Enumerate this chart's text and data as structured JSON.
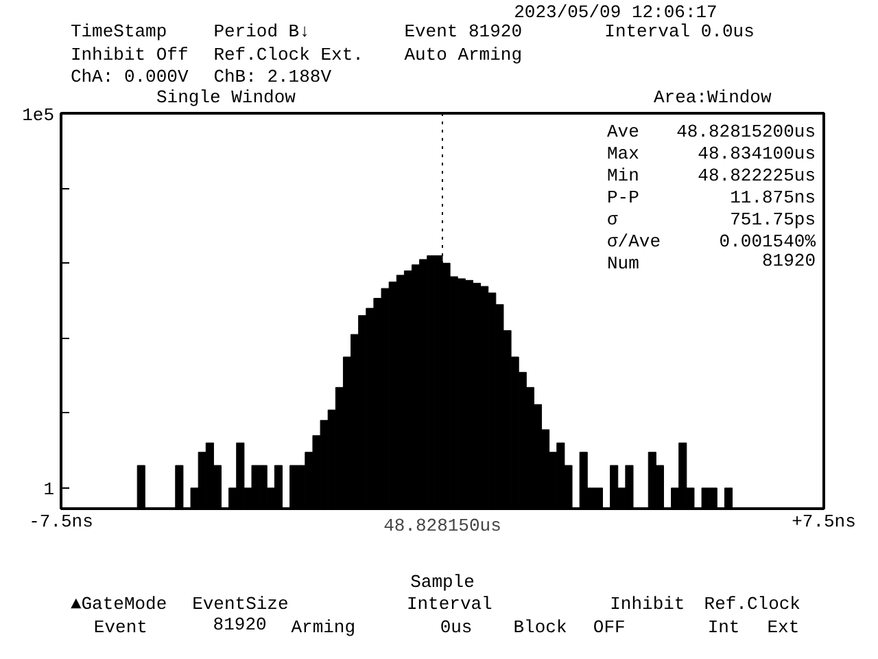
{
  "chart_data": {
    "type": "histogram",
    "title": "Single Window",
    "bins": [
      -7.5,
      -7.35,
      -7.2,
      -7.05,
      -6.9,
      -6.75,
      -6.6,
      -6.45,
      -6.3,
      -6.15,
      -6.0,
      -5.85,
      -5.7,
      -5.55,
      -5.4,
      -5.25,
      -5.1,
      -4.95,
      -4.8,
      -4.65,
      -4.5,
      -4.35,
      -4.2,
      -4.05,
      -3.9,
      -3.75,
      -3.6,
      -3.45,
      -3.3,
      -3.15,
      -3.0,
      -2.85,
      -2.7,
      -2.55,
      -2.4,
      -2.25,
      -2.1,
      -1.95,
      -1.8,
      -1.65,
      -1.5,
      -1.35,
      -1.2,
      -1.05,
      -0.9,
      -0.75,
      -0.6,
      -0.45,
      -0.3,
      -0.15,
      0,
      0.15,
      0.3,
      0.45,
      0.6,
      0.75,
      0.9,
      1.05,
      1.2,
      1.35,
      1.5,
      1.65,
      1.8,
      1.95,
      2.1,
      2.25,
      2.4,
      2.55,
      2.7,
      2.85,
      3.0,
      3.15,
      3.3,
      3.45,
      3.6,
      3.75,
      3.9,
      4.05,
      4.2,
      4.35,
      4.5,
      4.65,
      4.8,
      4.95,
      5.1,
      5.25,
      5.4,
      5.55,
      5.7,
      5.85,
      6.0,
      6.15,
      6.3,
      6.45,
      6.6,
      6.75,
      6.9,
      7.05,
      7.2,
      7.35,
      7.5
    ],
    "values": [
      null,
      null,
      null,
      null,
      null,
      null,
      null,
      null,
      null,
      null,
      2,
      null,
      null,
      null,
      null,
      2,
      null,
      1,
      3,
      4,
      2,
      null,
      1,
      4,
      1,
      2,
      2,
      1,
      2,
      null,
      2,
      2,
      3,
      5,
      8,
      11,
      22,
      56,
      112,
      200,
      250,
      340,
      460,
      560,
      690,
      790,
      950,
      1120,
      1260,
      1260,
      1000,
      660,
      620,
      590,
      540,
      490,
      400,
      280,
      126,
      56,
      35,
      22,
      13,
      6,
      3,
      4,
      2,
      null,
      3,
      1,
      1,
      null,
      2,
      1,
      2,
      null,
      null,
      3,
      2,
      null,
      1,
      4,
      1,
      null,
      1,
      1,
      null,
      1,
      null,
      null,
      null,
      null,
      null,
      null,
      null,
      null,
      null,
      null,
      null,
      null
    ],
    "color": "#000000",
    "log": "y",
    "xlabel": "48.828150us",
    "xlim": [
      -7.5,
      7.5
    ],
    "xticks": [
      {
        "value": -7.5,
        "label": "-7.5ns"
      },
      {
        "value": 7.5,
        "label": "+7.5ns"
      }
    ],
    "ylim": [
      0.53,
      100000
    ],
    "yticks": [
      {
        "value": 100000,
        "label": "1e5"
      },
      {
        "value": 10000,
        "label": null
      },
      {
        "value": 1000,
        "label": null
      },
      {
        "value": 100,
        "label": null
      },
      {
        "value": 10,
        "label": null
      },
      1
    ],
    "grid": false,
    "ref_lines": [
      {
        "axis": "x",
        "value": 0,
        "line_style": "dotted",
        "color": "#000000"
      }
    ],
    "annotations": [
      "2023/05/09 12:06:17",
      "TimeStamp",
      "Period B↓",
      "Event 81920",
      "Interval 0.0us",
      "Inhibit Off",
      "Ref.Clock Ext.",
      "Auto Arming",
      "ChA:  0.000V",
      "ChB:  2.188V",
      "Area:Window",
      "Ave",
      "48.82815200us",
      "Max",
      "48.834100us",
      "Min",
      "48.822225us",
      "P-P",
      "11.875ns",
      "σ",
      "751.75ps",
      "σ/Ave",
      "0.001540%",
      "Num",
      "81920",
      "Sample",
      "▲GateMode",
      "Event",
      "EventSize",
      "81920",
      "Arming",
      "Interval",
      "0us",
      "Block",
      "Inhibit",
      "OFF",
      "Ref.Clock",
      "Int",
      "Ext"
    ]
  }
}
